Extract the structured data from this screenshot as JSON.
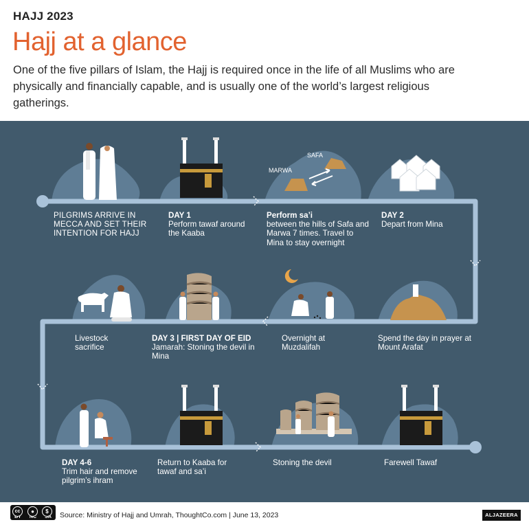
{
  "header": {
    "kicker": "HAJJ 2023",
    "title": "Hajj at a glance",
    "subtitle": "One of the five pillars of Islam, the Hajj is required once in the life of all Muslims who are physically and financially capable, and is usually one of the world’s largest religious gatherings."
  },
  "steps": {
    "s1": {
      "label": "PILGRIMS ARRIVE IN MECCA AND SET THEIR INTENTION FOR HAJJ"
    },
    "s2": {
      "bold": "DAY 1",
      "text": "Perform tawaf around the Kaaba"
    },
    "s3": {
      "bold": "Perform sa’i",
      "text": "between the hills of Safa and Marwa 7 times. Travel to Mina to stay overnight",
      "safa": "SAFA",
      "marwa": "MARWA"
    },
    "s4": {
      "bold": "DAY 2",
      "text": "Depart from Mina"
    },
    "s5": {
      "text": "Spend the day in prayer at Mount Arafat"
    },
    "s6": {
      "text": "Overnight at Muzdalifah"
    },
    "s7": {
      "bold": "DAY 3 | FIRST DAY OF EID",
      "text": "Jamarah: Stoning the devil in Mina"
    },
    "s8": {
      "text": "Livestock sacrifice"
    },
    "s9": {
      "bold": "DAY 4-6",
      "text": "Trim hair and remove pilgrim’s ihram"
    },
    "s10": {
      "text": "Return to Kaaba for tawaf and sa’i"
    },
    "s11": {
      "text": "Stoning the devil"
    },
    "s12": {
      "text": "Farewell Tawaf"
    }
  },
  "footer": {
    "license_labels": [
      "BY",
      "NC",
      "SA"
    ],
    "source": "Source: Ministry of Hajj and Umrah, ThoughtCo.com  |  June 13, 2023",
    "brand": "ALJAZEERA"
  },
  "colors": {
    "accent": "#e2622f",
    "panel": "#415a6c",
    "road": "#a9c2d9",
    "blob": "#5f7d95"
  }
}
